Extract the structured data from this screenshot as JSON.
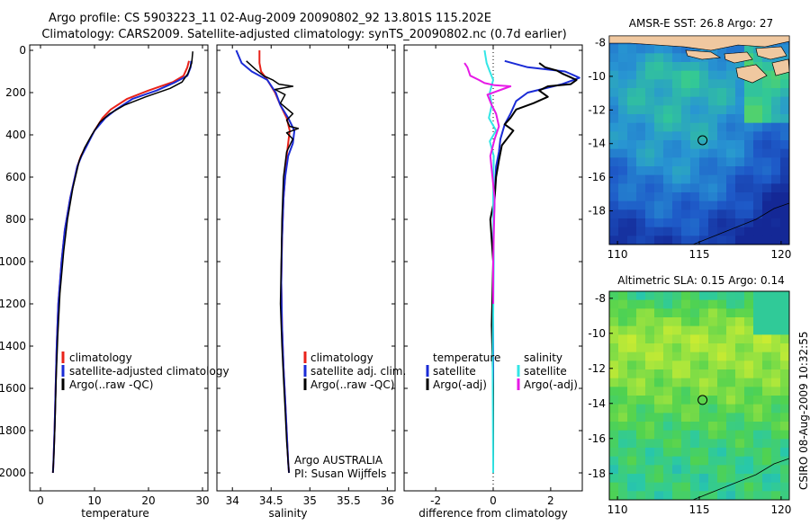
{
  "header": {
    "line1": "Argo profile: CS 5903223_11 02-Aug-2009 20090802_92 13.801S 115.202E",
    "line2": "Climatology: CARS2009. Satellite-adjusted climatology: synTS_20090802.nc (0.7d earlier)"
  },
  "colors": {
    "climatology": "#e8221a",
    "satellite": "#1a2bd6",
    "argo": "#000000",
    "satellite_salinity": "#33e6e6",
    "argo_salinity": "#e61ae6",
    "land": "#f0c8a0"
  },
  "chart_data": [
    {
      "type": "line",
      "id": "temperature",
      "xlabel": "temperature",
      "ylabel": "",
      "xlim": [
        -2,
        31
      ],
      "ylim": [
        2050,
        0
      ],
      "xticks": [
        "0",
        "10",
        "20",
        "30"
      ],
      "yticks": [
        "0",
        "200",
        "400",
        "600",
        "800",
        "1000",
        "1200",
        "1400",
        "1600",
        "1800",
        "2000"
      ],
      "legend": [
        "climatology",
        "satellite-adjusted climatology",
        "Argo(..raw -QC)"
      ],
      "series": [
        {
          "name": "climatology",
          "x": [
            27.5,
            27.2,
            26.5,
            24.5,
            20,
            16,
            13,
            11.5,
            10,
            8.5,
            7.5,
            6.8,
            5.5,
            4.5,
            3.9,
            3.3,
            3.0,
            2.8,
            2.6,
            2.4,
            2.3
          ],
          "y": [
            50,
            80,
            120,
            150,
            190,
            230,
            280,
            320,
            380,
            450,
            500,
            550,
            700,
            850,
            1000,
            1200,
            1400,
            1600,
            1800,
            1950,
            2000
          ]
        },
        {
          "name": "satellite",
          "x": [
            27.9,
            27.8,
            27.2,
            25,
            21.5,
            17,
            14,
            12,
            10,
            8.6,
            7.6,
            6.8,
            5.5,
            4.5,
            3.9,
            3.3,
            3.0,
            2.8,
            2.6,
            2.4,
            2.3
          ],
          "y": [
            50,
            80,
            120,
            150,
            190,
            230,
            280,
            320,
            380,
            450,
            500,
            550,
            700,
            850,
            1000,
            1200,
            1400,
            1600,
            1800,
            1950,
            2000
          ]
        },
        {
          "name": "Argo",
          "x": [
            28.2,
            28.0,
            27.3,
            26.2,
            24.0,
            19.5,
            15.5,
            12.8,
            11.0,
            9.5,
            8.2,
            7.2,
            6.0,
            5.0,
            4.3,
            3.6,
            3.2,
            2.9,
            2.7,
            2.5,
            2.3
          ],
          "y": [
            5,
            60,
            110,
            150,
            180,
            220,
            260,
            300,
            340,
            400,
            460,
            520,
            650,
            800,
            950,
            1150,
            1350,
            1550,
            1750,
            1900,
            2000
          ]
        }
      ]
    },
    {
      "type": "line",
      "id": "salinity",
      "xlabel": "salinity",
      "xlim": [
        33.8,
        36.1
      ],
      "ylim": [
        2050,
        0
      ],
      "xticks": [
        "34",
        "34.5",
        "35",
        "35.5",
        "36"
      ],
      "legend": [
        "climatology",
        "satellite adj. clim.",
        "Argo(..raw -QC)"
      ],
      "notes": [
        "Argo AUSTRALIA",
        "PI: Susan Wijffels"
      ],
      "series": [
        {
          "name": "climatology",
          "x": [
            34.35,
            34.35,
            34.37,
            34.45,
            34.55,
            34.62,
            34.7,
            34.74,
            34.72,
            34.7,
            34.68,
            34.66,
            34.64,
            34.63,
            34.64,
            34.66,
            34.68,
            34.7,
            34.72,
            34.73
          ],
          "y": [
            0,
            60,
            100,
            140,
            200,
            260,
            320,
            380,
            440,
            500,
            600,
            700,
            900,
            1100,
            1300,
            1500,
            1650,
            1800,
            1950,
            2000
          ]
        },
        {
          "name": "satellite",
          "x": [
            34.05,
            34.12,
            34.25,
            34.45,
            34.56,
            34.62,
            34.72,
            34.8,
            34.78,
            34.72,
            34.68,
            34.66,
            34.64,
            34.63,
            34.64,
            34.66,
            34.68,
            34.7,
            34.72,
            34.73
          ],
          "y": [
            0,
            60,
            100,
            140,
            200,
            260,
            320,
            380,
            440,
            500,
            600,
            700,
            900,
            1100,
            1300,
            1500,
            1650,
            1800,
            1950,
            2000
          ]
        },
        {
          "name": "Argo",
          "x": [
            34.18,
            34.3,
            34.4,
            34.52,
            34.6,
            34.78,
            34.55,
            34.68,
            34.62,
            34.78,
            34.7,
            34.74,
            34.85,
            34.7,
            34.78,
            34.7,
            34.66,
            34.64,
            34.63,
            34.62,
            34.64,
            34.66,
            34.68,
            34.7,
            34.72,
            34.73
          ],
          "y": [
            50,
            90,
            120,
            140,
            160,
            170,
            185,
            210,
            250,
            300,
            330,
            360,
            370,
            390,
            420,
            480,
            600,
            800,
            1000,
            1200,
            1400,
            1550,
            1700,
            1850,
            1950,
            2000
          ]
        }
      ]
    },
    {
      "type": "line",
      "id": "difference",
      "xlabel": "difference from climatology",
      "xlim": [
        -3.1,
        3.1
      ],
      "ylim": [
        2050,
        0
      ],
      "xticks": [
        "-2",
        "0",
        "2"
      ],
      "legend_left_title": "temperature",
      "legend_right_title": "salinity",
      "legend_left": [
        "satellite",
        "Argo(-adj)"
      ],
      "legend_right": [
        "satellite",
        "Argo(-adj)"
      ],
      "series": [
        {
          "name": "temperature satellite",
          "x": [
            0.4,
            1.2,
            2.5,
            3.0,
            2.4,
            1.2,
            0.8,
            0.6,
            0.4,
            0.25,
            0.2,
            0.1,
            0.05,
            0.0,
            0.0,
            0.0,
            0.0,
            0.0
          ],
          "y": [
            50,
            80,
            100,
            130,
            160,
            200,
            240,
            300,
            350,
            420,
            480,
            550,
            700,
            900,
            1200,
            1500,
            1800,
            2000
          ]
        },
        {
          "name": "temperature Argo",
          "x": [
            1.6,
            1.8,
            2.2,
            2.4,
            2.9,
            2.7,
            1.9,
            1.6,
            1.9,
            1.4,
            0.8,
            0.6,
            0.4,
            0.7,
            0.3,
            0.2,
            0.1,
            0.05,
            -0.1,
            0.0,
            -0.05,
            0.0,
            0.0
          ],
          "y": [
            60,
            80,
            95,
            110,
            140,
            160,
            170,
            190,
            220,
            250,
            280,
            320,
            350,
            380,
            450,
            520,
            600,
            700,
            800,
            1000,
            1300,
            1600,
            2000
          ]
        },
        {
          "name": "salinity satellite",
          "x": [
            -0.3,
            -0.23,
            -0.12,
            0.0,
            -0.12,
            -0.05,
            -0.15,
            0.1,
            -0.12,
            0.02,
            0.0,
            0.02,
            -0.02,
            0.0
          ],
          "y": [
            0,
            60,
            100,
            140,
            200,
            260,
            320,
            380,
            430,
            500,
            700,
            1000,
            1500,
            2000
          ]
        },
        {
          "name": "salinity Argo",
          "x": [
            -1.0,
            -0.9,
            -0.8,
            -0.5,
            -0.3,
            0.05,
            0.6,
            0.3,
            -0.2,
            -0.05,
            0.1,
            0.2,
            0.05,
            -0.1,
            0.05,
            0.0,
            0.0
          ],
          "y": [
            60,
            80,
            120,
            140,
            155,
            165,
            170,
            185,
            210,
            260,
            300,
            360,
            420,
            500,
            700,
            1000,
            1200
          ]
        }
      ]
    },
    {
      "type": "heatmap",
      "id": "sst-map",
      "title": "AMSR-E SST: 26.8 Argo: 27",
      "xlim": [
        109.5,
        120.5
      ],
      "ylim": [
        -20,
        -7.6
      ],
      "xticks": [
        "110",
        "115",
        "120"
      ],
      "yticks": [
        "-8",
        "-10",
        "-12",
        "-14",
        "-16",
        "-18"
      ],
      "marker": {
        "lon": 115.2,
        "lat": -13.8
      }
    },
    {
      "type": "heatmap",
      "id": "sla-map",
      "title": "Altimetric SLA: 0.15 Argo: 0.14",
      "xlim": [
        109.5,
        120.5
      ],
      "ylim": [
        -19.5,
        -7.6
      ],
      "xticks": [
        "110",
        "115",
        "120"
      ],
      "yticks": [
        "-8",
        "-10",
        "-12",
        "-14",
        "-16",
        "-18"
      ],
      "marker": {
        "lon": 115.2,
        "lat": -13.8
      }
    }
  ],
  "footer": {
    "stamp": "CSIRO 08-Aug-2009 10:32:55"
  }
}
